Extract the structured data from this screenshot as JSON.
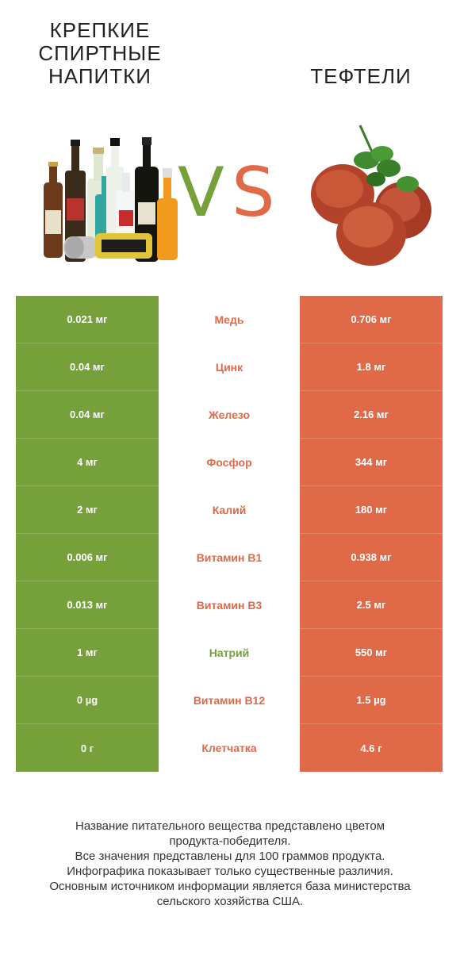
{
  "left_product": {
    "name": "КРЕПКИЕ\nСПИРТНЫЕ\nНАПИТКИ",
    "image": "liquor-bottles"
  },
  "right_product": {
    "name": "ТЕФТЕЛИ",
    "image": "meatballs"
  },
  "vs": {
    "v": "V",
    "s": "S"
  },
  "colors": {
    "left": "#76a03a",
    "right": "#e06a48"
  },
  "rows": [
    {
      "left": "0.021 мг",
      "nutrient": "Медь",
      "right": "0.706 мг",
      "winner": "right"
    },
    {
      "left": "0.04 мг",
      "nutrient": "Цинк",
      "right": "1.8 мг",
      "winner": "right"
    },
    {
      "left": "0.04 мг",
      "nutrient": "Железо",
      "right": "2.16 мг",
      "winner": "right"
    },
    {
      "left": "4 мг",
      "nutrient": "Фосфор",
      "right": "344 мг",
      "winner": "right"
    },
    {
      "left": "2 мг",
      "nutrient": "Калий",
      "right": "180 мг",
      "winner": "right"
    },
    {
      "left": "0.006 мг",
      "nutrient": "Витамин B1",
      "right": "0.938 мг",
      "winner": "right"
    },
    {
      "left": "0.013 мг",
      "nutrient": "Витамин B3",
      "right": "2.5 мг",
      "winner": "right"
    },
    {
      "left": "1 мг",
      "nutrient": "Натрий",
      "right": "550 мг",
      "winner": "left"
    },
    {
      "left": "0 µg",
      "nutrient": "Витамин B12",
      "right": "1.5 µg",
      "winner": "right"
    },
    {
      "left": "0 г",
      "nutrient": "Клетчатка",
      "right": "4.6 г",
      "winner": "right"
    }
  ],
  "footer": "Название питательного вещества представлено цветом\nпродукта-победителя.\nВсе значения представлены для 100 граммов продукта.\nИнфографика показывает только существенные различия.\nОсновным источником информации является база министерства\nсельского хозяйства США."
}
